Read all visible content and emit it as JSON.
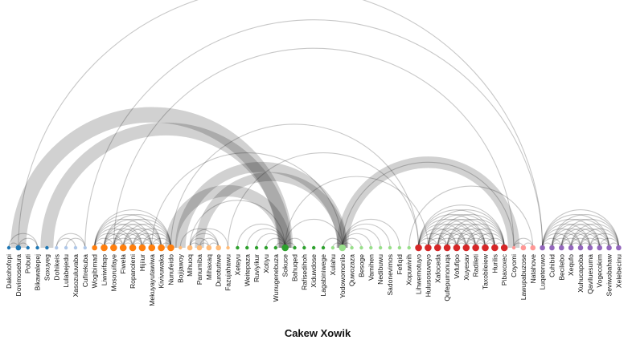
{
  "title": "Cakew Xowik",
  "colors": {
    "group_palette": [
      "#1f77b4",
      "#aec7e8",
      "#ff7f0e",
      "#ffbb78",
      "#2ca02c",
      "#98df8a",
      "#d62728",
      "#ff9896",
      "#9467bd"
    ],
    "link": "#000000"
  },
  "nodes": [
    {
      "name": "Dakohofopi",
      "group": 0,
      "size": 1
    },
    {
      "name": "Dovimosetura",
      "group": 0,
      "size": 2
    },
    {
      "name": "Pobuti",
      "group": 0,
      "size": 1
    },
    {
      "name": "Bikawalepej",
      "group": 0,
      "size": 1
    },
    {
      "name": "Soxuyeg",
      "group": 0,
      "size": 1
    },
    {
      "name": "Dohikeis",
      "group": 1,
      "size": 1
    },
    {
      "name": "Lulabejedu",
      "group": 1,
      "size": 1
    },
    {
      "name": "Xasozuluvaba",
      "group": 1,
      "size": 1
    },
    {
      "name": "Cufirekuba",
      "group": 1,
      "size": 1
    },
    {
      "name": "Wogibimad",
      "group": 2,
      "size": 2
    },
    {
      "name": "Liwiwifaqo",
      "group": 2,
      "size": 3
    },
    {
      "name": "Mosoruifaye",
      "group": 2,
      "size": 3
    },
    {
      "name": "Fiwela",
      "group": 2,
      "size": 3
    },
    {
      "name": "Ropanoleni",
      "group": 2,
      "size": 3
    },
    {
      "name": "Hijiiur",
      "group": 2,
      "size": 3
    },
    {
      "name": "Mekuyayutawiwa",
      "group": 2,
      "size": 3
    },
    {
      "name": "Kivivuwaka",
      "group": 2,
      "size": 3
    },
    {
      "name": "Nunufeido",
      "group": 2,
      "size": 3
    },
    {
      "name": "Bojijawoy",
      "group": 3,
      "size": 1
    },
    {
      "name": "Mihuoq",
      "group": 3,
      "size": 2
    },
    {
      "name": "Panumiba",
      "group": 3,
      "size": 2
    },
    {
      "name": "Mihaxaq",
      "group": 3,
      "size": 2
    },
    {
      "name": "Durotutiwe",
      "group": 3,
      "size": 2
    },
    {
      "name": "Fazujahawu",
      "group": 3,
      "size": 1
    },
    {
      "name": "Xeteyu",
      "group": 4,
      "size": 1
    },
    {
      "name": "Weitepaza",
      "group": 4,
      "size": 1
    },
    {
      "name": "Ruviyikur",
      "group": 4,
      "size": 1
    },
    {
      "name": "Xotiyu",
      "group": 4,
      "size": 1
    },
    {
      "name": "Wunugenebuza",
      "group": 4,
      "size": 1
    },
    {
      "name": "Sokuce",
      "group": 4,
      "size": 3
    },
    {
      "name": "Bahuqed",
      "group": 4,
      "size": 1
    },
    {
      "name": "Rafisedihoh",
      "group": 4,
      "size": 1
    },
    {
      "name": "Xiduwdose",
      "group": 4,
      "size": 1
    },
    {
      "name": "Lagabiniwege",
      "group": 4,
      "size": 1
    },
    {
      "name": "Xulahu",
      "group": 5,
      "size": 1
    },
    {
      "name": "Yodowomonilo",
      "group": 5,
      "size": 3
    },
    {
      "name": "Quwozaza",
      "group": 5,
      "size": 1
    },
    {
      "name": "Besoge",
      "group": 5,
      "size": 1
    },
    {
      "name": "Vamihen",
      "group": 5,
      "size": 1
    },
    {
      "name": "Nedibuwu",
      "group": 5,
      "size": 1
    },
    {
      "name": "Sadonevimos",
      "group": 5,
      "size": 1
    },
    {
      "name": "Fefiqid",
      "group": 5,
      "size": 1
    },
    {
      "name": "Xopuwivih",
      "group": 5,
      "size": 1
    },
    {
      "name": "Lihwemotuyo",
      "group": 6,
      "size": 3
    },
    {
      "name": "Hulusosuveyo",
      "group": 6,
      "size": 3
    },
    {
      "name": "Xafoceda",
      "group": 6,
      "size": 3
    },
    {
      "name": "Qufepumonuqa",
      "group": 6,
      "size": 3
    },
    {
      "name": "Vofufipo",
      "group": 6,
      "size": 3
    },
    {
      "name": "Xuyesav",
      "group": 6,
      "size": 3
    },
    {
      "name": "Radileti",
      "group": 6,
      "size": 3
    },
    {
      "name": "Taxobileiew",
      "group": 6,
      "size": 3
    },
    {
      "name": "Hurilis",
      "group": 6,
      "size": 3
    },
    {
      "name": "Pibaxoxec",
      "group": 6,
      "size": 3
    },
    {
      "name": "Coyomi",
      "group": 7,
      "size": 1
    },
    {
      "name": "Lawupabuzose",
      "group": 7,
      "size": 2
    },
    {
      "name": "Natahove",
      "group": 7,
      "size": 2
    },
    {
      "name": "Luqeteruwo",
      "group": 8,
      "size": 2
    },
    {
      "name": "Cuhibid",
      "group": 8,
      "size": 2
    },
    {
      "name": "Becilebo",
      "group": 8,
      "size": 2
    },
    {
      "name": "Xequfo",
      "group": 8,
      "size": 2
    },
    {
      "name": "Xuhucapoba",
      "group": 8,
      "size": 2
    },
    {
      "name": "Qaviluesuma",
      "group": 8,
      "size": 2
    },
    {
      "name": "Vogecokim",
      "group": 8,
      "size": 2
    },
    {
      "name": "Seviwobahaw",
      "group": 8,
      "size": 2
    },
    {
      "name": "Xelebecinu",
      "group": 8,
      "size": 2
    }
  ],
  "links": [
    [
      0,
      1,
      1
    ],
    [
      1,
      2,
      1
    ],
    [
      1,
      3,
      1
    ],
    [
      0,
      3,
      1
    ],
    [
      5,
      8,
      1
    ],
    [
      6,
      8,
      1
    ],
    [
      5,
      7,
      1
    ],
    [
      9,
      10,
      1
    ],
    [
      9,
      11,
      1
    ],
    [
      9,
      12,
      1
    ],
    [
      9,
      13,
      1
    ],
    [
      9,
      14,
      1
    ],
    [
      9,
      15,
      1
    ],
    [
      9,
      16,
      1
    ],
    [
      9,
      17,
      1
    ],
    [
      10,
      11,
      1
    ],
    [
      10,
      12,
      1
    ],
    [
      10,
      13,
      1
    ],
    [
      10,
      14,
      1
    ],
    [
      10,
      15,
      1
    ],
    [
      10,
      16,
      1
    ],
    [
      10,
      17,
      1
    ],
    [
      11,
      12,
      1
    ],
    [
      11,
      13,
      1
    ],
    [
      11,
      14,
      1
    ],
    [
      11,
      15,
      1
    ],
    [
      11,
      16,
      1
    ],
    [
      11,
      17,
      1
    ],
    [
      12,
      13,
      1
    ],
    [
      12,
      14,
      1
    ],
    [
      12,
      15,
      1
    ],
    [
      12,
      16,
      1
    ],
    [
      12,
      17,
      1
    ],
    [
      13,
      14,
      1
    ],
    [
      13,
      15,
      1
    ],
    [
      13,
      16,
      1
    ],
    [
      13,
      17,
      1
    ],
    [
      14,
      15,
      1
    ],
    [
      14,
      16,
      1
    ],
    [
      14,
      17,
      1
    ],
    [
      15,
      16,
      1
    ],
    [
      15,
      17,
      1
    ],
    [
      16,
      17,
      1
    ],
    [
      18,
      22,
      1
    ],
    [
      19,
      20,
      1
    ],
    [
      19,
      21,
      1
    ],
    [
      19,
      22,
      1
    ],
    [
      20,
      21,
      1
    ],
    [
      20,
      22,
      1
    ],
    [
      21,
      22,
      1
    ],
    [
      19,
      23,
      1
    ],
    [
      43,
      44,
      1
    ],
    [
      43,
      45,
      1
    ],
    [
      43,
      46,
      1
    ],
    [
      43,
      47,
      1
    ],
    [
      43,
      48,
      1
    ],
    [
      43,
      49,
      1
    ],
    [
      43,
      50,
      1
    ],
    [
      43,
      51,
      1
    ],
    [
      43,
      52,
      1
    ],
    [
      44,
      45,
      1
    ],
    [
      44,
      46,
      1
    ],
    [
      44,
      47,
      1
    ],
    [
      44,
      48,
      1
    ],
    [
      44,
      49,
      1
    ],
    [
      44,
      50,
      1
    ],
    [
      44,
      51,
      1
    ],
    [
      44,
      52,
      1
    ],
    [
      45,
      46,
      1
    ],
    [
      45,
      47,
      1
    ],
    [
      45,
      48,
      1
    ],
    [
      45,
      49,
      1
    ],
    [
      45,
      50,
      1
    ],
    [
      45,
      51,
      1
    ],
    [
      45,
      52,
      1
    ],
    [
      46,
      47,
      1
    ],
    [
      46,
      48,
      1
    ],
    [
      46,
      49,
      1
    ],
    [
      46,
      50,
      1
    ],
    [
      46,
      51,
      1
    ],
    [
      46,
      52,
      1
    ],
    [
      47,
      48,
      1
    ],
    [
      47,
      49,
      1
    ],
    [
      47,
      50,
      1
    ],
    [
      47,
      51,
      1
    ],
    [
      47,
      52,
      1
    ],
    [
      48,
      49,
      1
    ],
    [
      48,
      50,
      1
    ],
    [
      48,
      51,
      1
    ],
    [
      48,
      52,
      1
    ],
    [
      49,
      50,
      1
    ],
    [
      49,
      51,
      1
    ],
    [
      49,
      52,
      1
    ],
    [
      50,
      51,
      1
    ],
    [
      50,
      52,
      1
    ],
    [
      51,
      52,
      1
    ],
    [
      53,
      54,
      1
    ],
    [
      54,
      55,
      1
    ],
    [
      53,
      55,
      1
    ],
    [
      56,
      57,
      1
    ],
    [
      56,
      58,
      1
    ],
    [
      56,
      59,
      1
    ],
    [
      56,
      60,
      1
    ],
    [
      56,
      61,
      1
    ],
    [
      56,
      62,
      1
    ],
    [
      56,
      63,
      1
    ],
    [
      56,
      64,
      1
    ],
    [
      57,
      58,
      1
    ],
    [
      57,
      59,
      1
    ],
    [
      57,
      60,
      1
    ],
    [
      57,
      61,
      1
    ],
    [
      57,
      62,
      1
    ],
    [
      57,
      63,
      1
    ],
    [
      57,
      64,
      1
    ],
    [
      58,
      59,
      1
    ],
    [
      58,
      60,
      1
    ],
    [
      58,
      61,
      1
    ],
    [
      58,
      62,
      1
    ],
    [
      58,
      63,
      1
    ],
    [
      58,
      64,
      1
    ],
    [
      59,
      60,
      1
    ],
    [
      59,
      61,
      1
    ],
    [
      59,
      62,
      1
    ],
    [
      59,
      63,
      1
    ],
    [
      59,
      64,
      1
    ],
    [
      60,
      61,
      1
    ],
    [
      60,
      62,
      1
    ],
    [
      60,
      63,
      1
    ],
    [
      60,
      64,
      1
    ],
    [
      61,
      62,
      1
    ],
    [
      61,
      63,
      1
    ],
    [
      61,
      64,
      1
    ],
    [
      62,
      63,
      1
    ],
    [
      62,
      64,
      1
    ],
    [
      63,
      64,
      1
    ],
    [
      29,
      35,
      1
    ],
    [
      28,
      29,
      1
    ],
    [
      27,
      29,
      1
    ],
    [
      26,
      29,
      1
    ],
    [
      25,
      29,
      1
    ],
    [
      24,
      29,
      1
    ],
    [
      29,
      30,
      1
    ],
    [
      29,
      31,
      1
    ],
    [
      35,
      36,
      1
    ],
    [
      35,
      37,
      1
    ],
    [
      35,
      38,
      1
    ],
    [
      35,
      39,
      1
    ],
    [
      35,
      40,
      1
    ],
    [
      35,
      41,
      1
    ],
    [
      34,
      35,
      1
    ],
    [
      33,
      35,
      1
    ],
    [
      1,
      29,
      12
    ],
    [
      4,
      29,
      10
    ],
    [
      17,
      29,
      9
    ],
    [
      35,
      53,
      9
    ],
    [
      18,
      35,
      8
    ],
    [
      20,
      35,
      7
    ],
    [
      23,
      43,
      1
    ],
    [
      15,
      35,
      1
    ],
    [
      17,
      43,
      1
    ],
    [
      29,
      44,
      1
    ],
    [
      35,
      53,
      1
    ],
    [
      19,
      29,
      1
    ],
    [
      8,
      56,
      1
    ],
    [
      11,
      53,
      1
    ],
    [
      1,
      56,
      1
    ],
    [
      42,
      55,
      1
    ]
  ]
}
